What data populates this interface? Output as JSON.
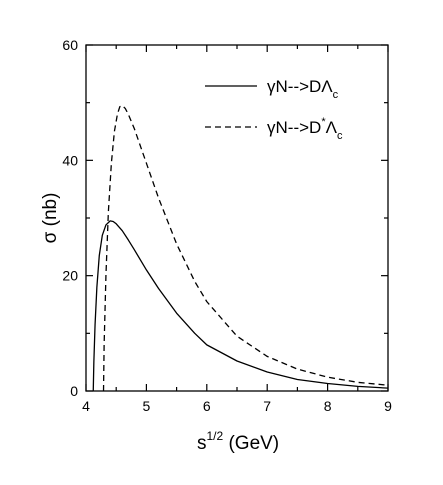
{
  "chart_data": {
    "type": "line",
    "title": "",
    "xlabel": {
      "base": "s",
      "sup": "1/2",
      "rest": " (GeV)"
    },
    "ylabel": "σ (nb)",
    "xlim": [
      4,
      9
    ],
    "ylim": [
      0,
      60
    ],
    "xticks": [
      "4",
      "5",
      "6",
      "7",
      "8",
      "9"
    ],
    "yticks": [
      "0",
      "20",
      "40",
      "60"
    ],
    "grid": false,
    "legend_position": "top-right",
    "series": [
      {
        "name": "γN-->DΛc",
        "legend": {
          "main": "γN-->DΛ",
          "sup": "",
          "sub": "c"
        },
        "style": "solid",
        "x": [
          4.12,
          4.13,
          4.15,
          4.18,
          4.22,
          4.27,
          4.33,
          4.4,
          4.45,
          4.5,
          4.6,
          4.7,
          4.8,
          5.0,
          5.2,
          5.5,
          5.8,
          6.0,
          6.5,
          7.0,
          7.5,
          8.0,
          8.5,
          9.0
        ],
        "y": [
          0,
          5.0,
          11.5,
          18.0,
          23.5,
          27.0,
          28.8,
          29.5,
          29.4,
          29.0,
          27.8,
          26.2,
          24.5,
          21.0,
          17.8,
          13.5,
          10.0,
          8.0,
          5.2,
          3.3,
          2.0,
          1.3,
          0.8,
          0.5
        ]
      },
      {
        "name": "γN-->D*Λc",
        "legend": {
          "main": "γN-->D",
          "sup": "*",
          "main2": "Λ",
          "sub": "c"
        },
        "style": "dashed",
        "x": [
          4.29,
          4.3,
          4.33,
          4.37,
          4.42,
          4.47,
          4.52,
          4.56,
          4.6,
          4.65,
          4.7,
          4.8,
          5.0,
          5.2,
          5.5,
          5.8,
          6.0,
          6.5,
          7.0,
          7.5,
          8.0,
          8.5,
          9.0
        ],
        "y": [
          0,
          8.0,
          20.0,
          31.0,
          39.5,
          45.0,
          48.0,
          49.3,
          49.5,
          49.0,
          48.0,
          45.5,
          39.5,
          33.5,
          25.5,
          19.0,
          15.5,
          9.5,
          6.0,
          3.8,
          2.4,
          1.5,
          1.0
        ]
      }
    ]
  }
}
